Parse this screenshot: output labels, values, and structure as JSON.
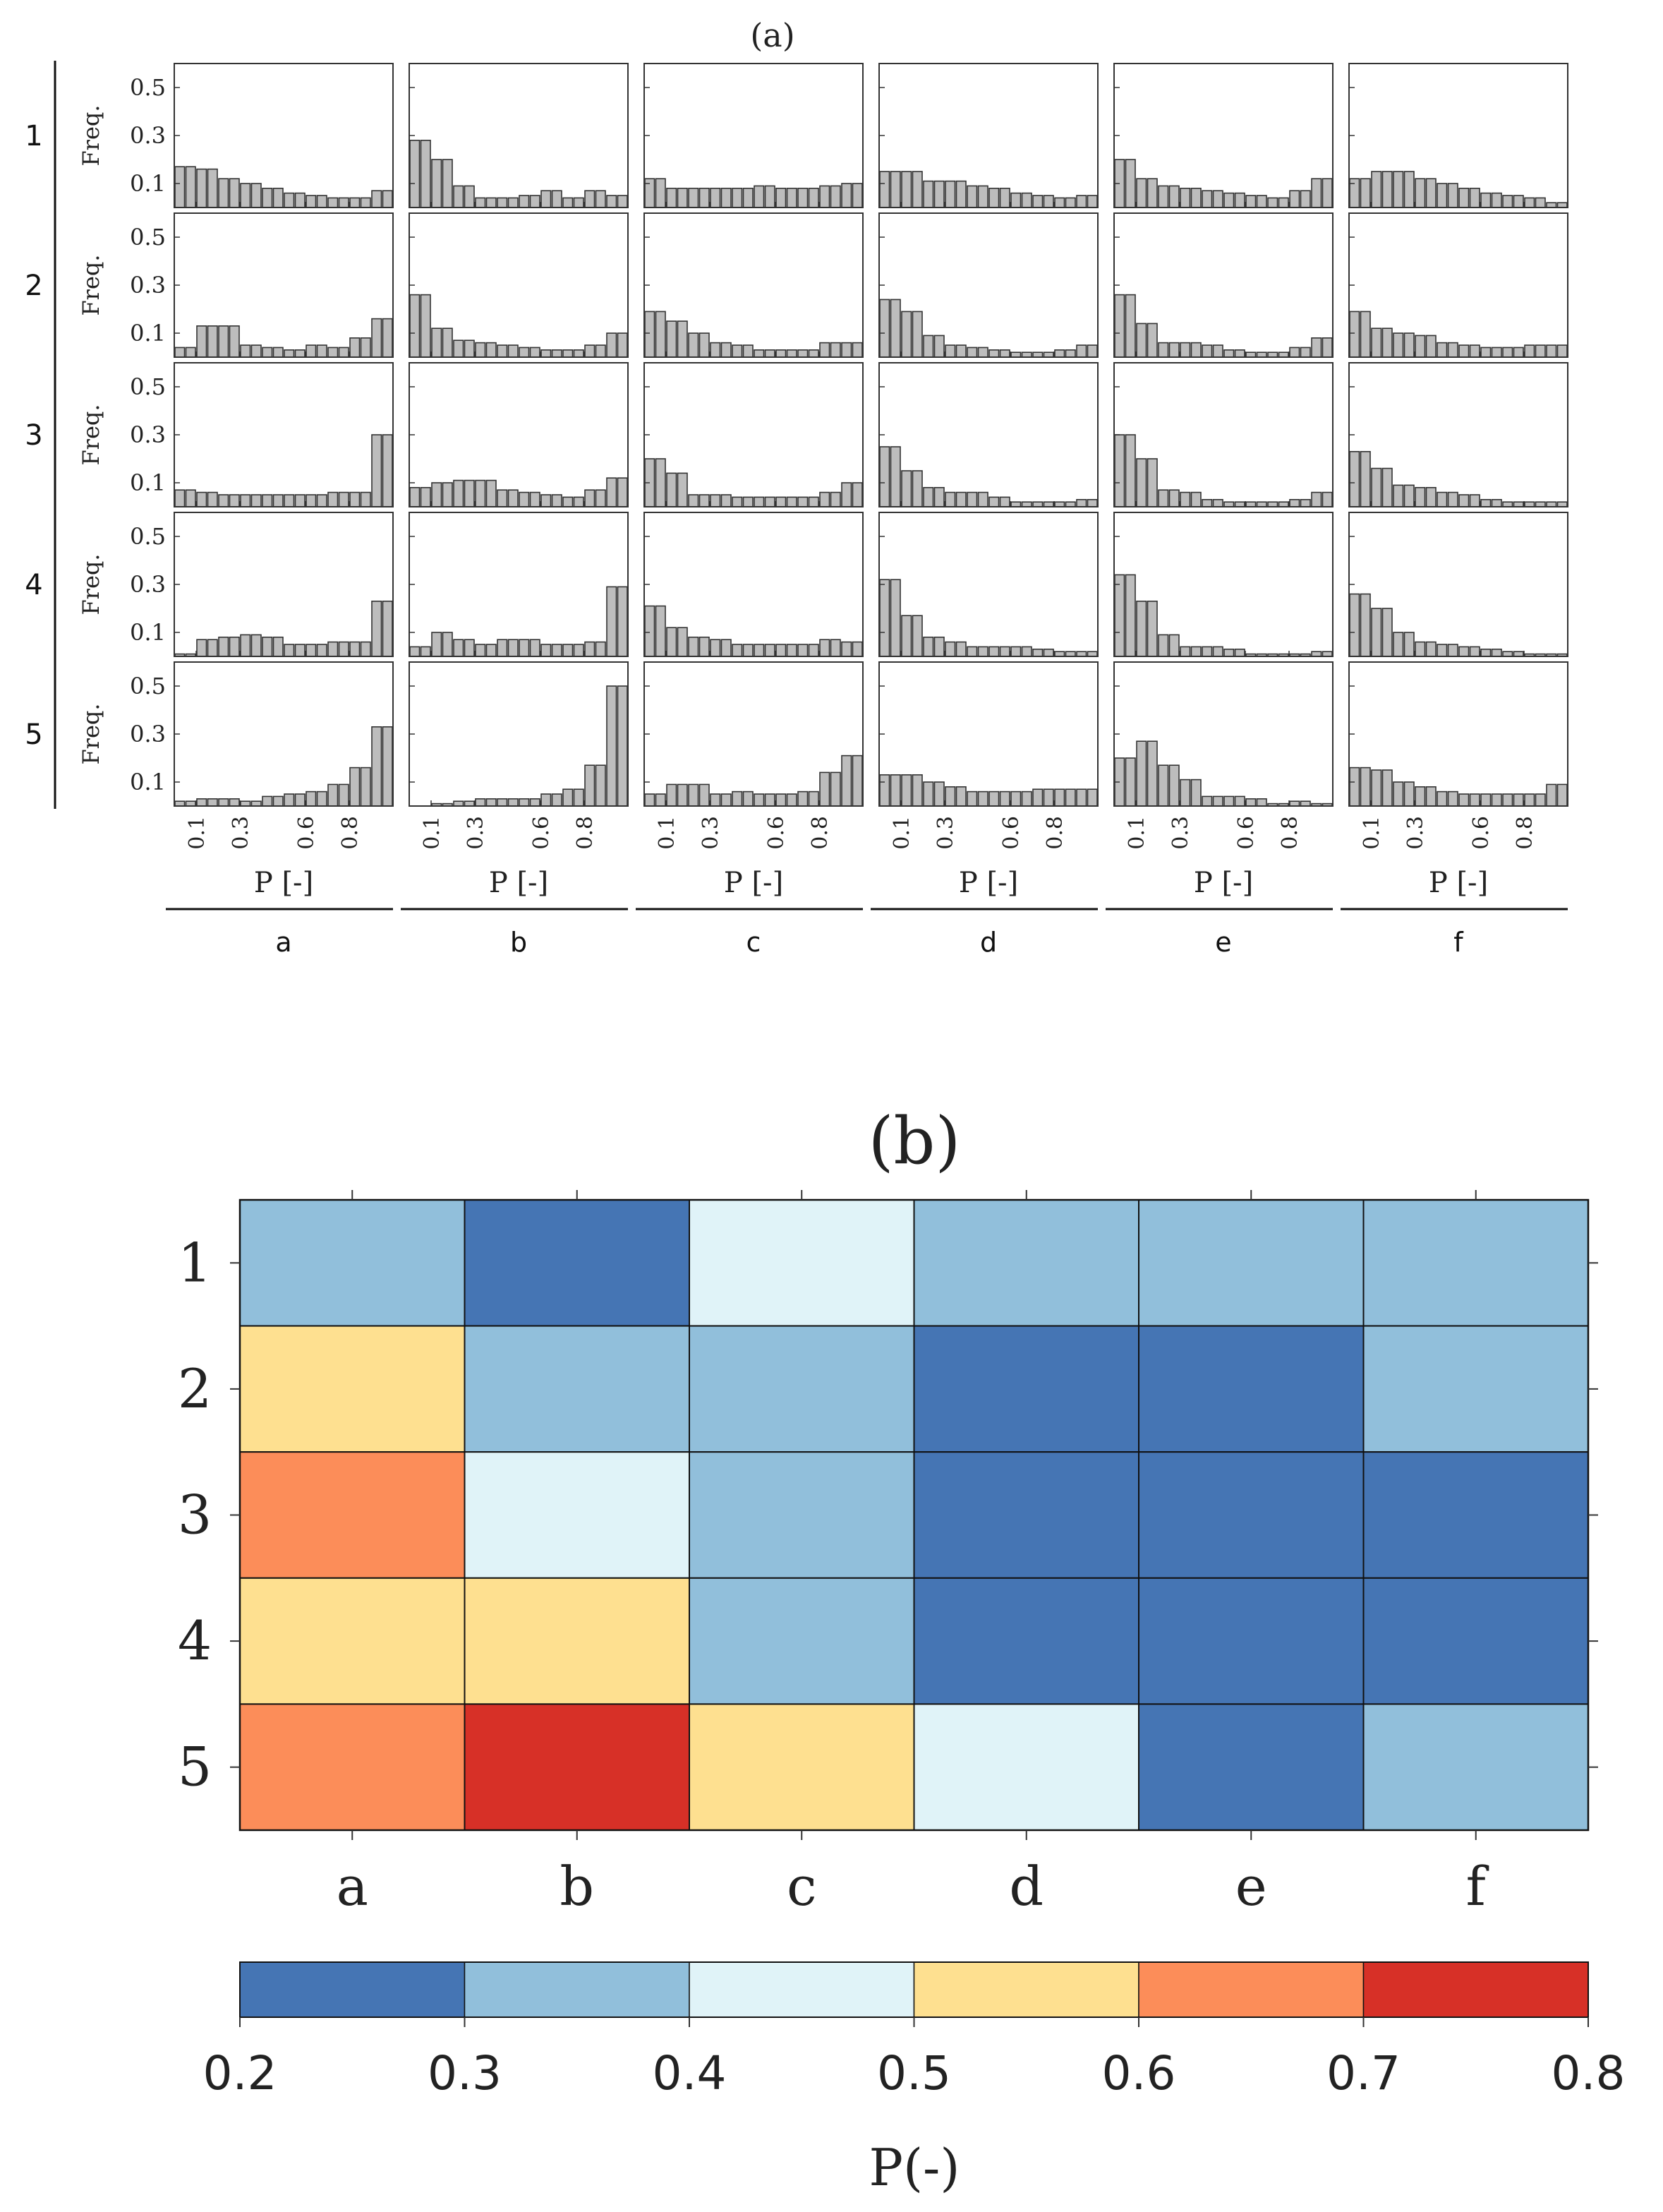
{
  "panel_a": {
    "title": "(a)",
    "y_axis_label": "Freq.",
    "x_axis_label": "P [-]",
    "y_tick_labels": [
      "0.5",
      "0.3",
      "0.1"
    ],
    "x_tick_labels": [
      "0.1",
      "0.3",
      "0.6",
      "0.8"
    ],
    "row_labels": [
      "1",
      "2",
      "3",
      "4",
      "5"
    ],
    "col_labels": [
      "a",
      "b",
      "c",
      "d",
      "e",
      "f"
    ]
  },
  "panel_b": {
    "title": "(b)",
    "row_labels": [
      "1",
      "2",
      "3",
      "4",
      "5"
    ],
    "col_labels": [
      "a",
      "b",
      "c",
      "d",
      "e",
      "f"
    ]
  },
  "colorbar": {
    "label": "P(-)",
    "tick_labels": [
      "0.2",
      "0.3",
      "0.4",
      "0.5",
      "0.6",
      "0.7",
      "0.8"
    ],
    "bins": [
      {
        "from": 0.2,
        "to": 0.3,
        "color": "#4575b4"
      },
      {
        "from": 0.3,
        "to": 0.4,
        "color": "#91bfdb"
      },
      {
        "from": 0.4,
        "to": 0.5,
        "color": "#e0f3f8"
      },
      {
        "from": 0.5,
        "to": 0.6,
        "color": "#fee090"
      },
      {
        "from": 0.6,
        "to": 0.7,
        "color": "#fc8d59"
      },
      {
        "from": 0.7,
        "to": 0.8,
        "color": "#d73027"
      }
    ]
  },
  "chart_data": [
    {
      "type": "bar",
      "title": "(a)",
      "xlabel": "P [-]",
      "ylabel": "Freq.",
      "ylim": [
        0,
        0.6
      ],
      "xlim": [
        0,
        1
      ],
      "bin_centers": [
        0.025,
        0.075,
        0.125,
        0.175,
        0.225,
        0.275,
        0.325,
        0.375,
        0.425,
        0.475,
        0.525,
        0.575,
        0.625,
        0.675,
        0.725,
        0.775,
        0.825,
        0.875,
        0.925,
        0.975
      ],
      "bar_color": "#bdbdbd",
      "note": "Grid of histograms: rows 1-5, columns a-f. Each has 20 bins over P in [0,1].",
      "histograms": {
        "1": {
          "a": [
            0.17,
            0.17,
            0.16,
            0.16,
            0.12,
            0.12,
            0.1,
            0.1,
            0.08,
            0.08,
            0.06,
            0.06,
            0.05,
            0.05,
            0.04,
            0.04,
            0.04,
            0.04,
            0.07,
            0.07
          ],
          "b": [
            0.28,
            0.28,
            0.2,
            0.2,
            0.09,
            0.09,
            0.04,
            0.04,
            0.04,
            0.04,
            0.05,
            0.05,
            0.07,
            0.07,
            0.04,
            0.04,
            0.07,
            0.07,
            0.05,
            0.05
          ],
          "c": [
            0.12,
            0.12,
            0.08,
            0.08,
            0.08,
            0.08,
            0.08,
            0.08,
            0.08,
            0.08,
            0.09,
            0.09,
            0.08,
            0.08,
            0.08,
            0.08,
            0.09,
            0.09,
            0.1,
            0.1
          ],
          "d": [
            0.15,
            0.15,
            0.15,
            0.15,
            0.11,
            0.11,
            0.11,
            0.11,
            0.09,
            0.09,
            0.08,
            0.08,
            0.06,
            0.06,
            0.05,
            0.05,
            0.04,
            0.04,
            0.05,
            0.05
          ],
          "e": [
            0.2,
            0.2,
            0.12,
            0.12,
            0.09,
            0.09,
            0.08,
            0.08,
            0.07,
            0.07,
            0.06,
            0.06,
            0.05,
            0.05,
            0.04,
            0.04,
            0.07,
            0.07,
            0.12,
            0.12
          ],
          "f": [
            0.12,
            0.12,
            0.15,
            0.15,
            0.15,
            0.15,
            0.12,
            0.12,
            0.1,
            0.1,
            0.08,
            0.08,
            0.06,
            0.06,
            0.05,
            0.05,
            0.04,
            0.04,
            0.02,
            0.02
          ]
        },
        "2": {
          "a": [
            0.04,
            0.04,
            0.13,
            0.13,
            0.13,
            0.13,
            0.05,
            0.05,
            0.04,
            0.04,
            0.03,
            0.03,
            0.05,
            0.05,
            0.04,
            0.04,
            0.08,
            0.08,
            0.16,
            0.16
          ],
          "b": [
            0.26,
            0.26,
            0.12,
            0.12,
            0.07,
            0.07,
            0.06,
            0.06,
            0.05,
            0.05,
            0.04,
            0.04,
            0.03,
            0.03,
            0.03,
            0.03,
            0.05,
            0.05,
            0.1,
            0.1
          ],
          "c": [
            0.19,
            0.19,
            0.15,
            0.15,
            0.1,
            0.1,
            0.06,
            0.06,
            0.05,
            0.05,
            0.03,
            0.03,
            0.03,
            0.03,
            0.03,
            0.03,
            0.06,
            0.06,
            0.06,
            0.06
          ],
          "d": [
            0.24,
            0.24,
            0.19,
            0.19,
            0.09,
            0.09,
            0.05,
            0.05,
            0.04,
            0.04,
            0.03,
            0.03,
            0.02,
            0.02,
            0.02,
            0.02,
            0.03,
            0.03,
            0.05,
            0.05
          ],
          "e": [
            0.26,
            0.26,
            0.14,
            0.14,
            0.06,
            0.06,
            0.06,
            0.06,
            0.05,
            0.05,
            0.03,
            0.03,
            0.02,
            0.02,
            0.02,
            0.02,
            0.04,
            0.04,
            0.08,
            0.08
          ],
          "f": [
            0.19,
            0.19,
            0.12,
            0.12,
            0.1,
            0.1,
            0.09,
            0.09,
            0.06,
            0.06,
            0.05,
            0.05,
            0.04,
            0.04,
            0.04,
            0.04,
            0.05,
            0.05,
            0.05,
            0.05
          ]
        },
        "3": {
          "a": [
            0.07,
            0.07,
            0.06,
            0.06,
            0.05,
            0.05,
            0.05,
            0.05,
            0.05,
            0.05,
            0.05,
            0.05,
            0.05,
            0.05,
            0.06,
            0.06,
            0.06,
            0.06,
            0.3,
            0.3
          ],
          "b": [
            0.08,
            0.08,
            0.1,
            0.1,
            0.11,
            0.11,
            0.11,
            0.11,
            0.07,
            0.07,
            0.06,
            0.06,
            0.05,
            0.05,
            0.04,
            0.04,
            0.07,
            0.07,
            0.12,
            0.12
          ],
          "c": [
            0.2,
            0.2,
            0.14,
            0.14,
            0.05,
            0.05,
            0.05,
            0.05,
            0.04,
            0.04,
            0.04,
            0.04,
            0.04,
            0.04,
            0.04,
            0.04,
            0.06,
            0.06,
            0.1,
            0.1
          ],
          "d": [
            0.25,
            0.25,
            0.15,
            0.15,
            0.08,
            0.08,
            0.06,
            0.06,
            0.06,
            0.06,
            0.04,
            0.04,
            0.02,
            0.02,
            0.02,
            0.02,
            0.02,
            0.02,
            0.03,
            0.03
          ],
          "e": [
            0.3,
            0.3,
            0.2,
            0.2,
            0.07,
            0.07,
            0.06,
            0.06,
            0.03,
            0.03,
            0.02,
            0.02,
            0.02,
            0.02,
            0.02,
            0.02,
            0.03,
            0.03,
            0.06,
            0.06
          ],
          "f": [
            0.23,
            0.23,
            0.16,
            0.16,
            0.09,
            0.09,
            0.08,
            0.08,
            0.06,
            0.06,
            0.05,
            0.05,
            0.03,
            0.03,
            0.02,
            0.02,
            0.02,
            0.02,
            0.02,
            0.02
          ]
        },
        "4": {
          "a": [
            0.01,
            0.01,
            0.07,
            0.07,
            0.08,
            0.08,
            0.09,
            0.09,
            0.08,
            0.08,
            0.05,
            0.05,
            0.05,
            0.05,
            0.06,
            0.06,
            0.06,
            0.06,
            0.23,
            0.23
          ],
          "b": [
            0.04,
            0.04,
            0.1,
            0.1,
            0.07,
            0.07,
            0.05,
            0.05,
            0.07,
            0.07,
            0.07,
            0.07,
            0.05,
            0.05,
            0.05,
            0.05,
            0.06,
            0.06,
            0.29,
            0.29
          ],
          "c": [
            0.21,
            0.21,
            0.12,
            0.12,
            0.08,
            0.08,
            0.07,
            0.07,
            0.05,
            0.05,
            0.05,
            0.05,
            0.05,
            0.05,
            0.05,
            0.05,
            0.07,
            0.07,
            0.06,
            0.06
          ],
          "d": [
            0.32,
            0.32,
            0.17,
            0.17,
            0.08,
            0.08,
            0.06,
            0.06,
            0.04,
            0.04,
            0.04,
            0.04,
            0.04,
            0.04,
            0.03,
            0.03,
            0.02,
            0.02,
            0.02,
            0.02
          ],
          "e": [
            0.34,
            0.34,
            0.23,
            0.23,
            0.09,
            0.09,
            0.04,
            0.04,
            0.04,
            0.04,
            0.03,
            0.03,
            0.01,
            0.01,
            0.01,
            0.01,
            0.01,
            0.01,
            0.02,
            0.02
          ],
          "f": [
            0.26,
            0.26,
            0.2,
            0.2,
            0.1,
            0.1,
            0.06,
            0.06,
            0.05,
            0.05,
            0.04,
            0.04,
            0.03,
            0.03,
            0.02,
            0.02,
            0.01,
            0.01,
            0.01,
            0.01
          ]
        },
        "5": {
          "a": [
            0.02,
            0.02,
            0.03,
            0.03,
            0.03,
            0.03,
            0.02,
            0.02,
            0.04,
            0.04,
            0.05,
            0.05,
            0.06,
            0.06,
            0.09,
            0.09,
            0.16,
            0.16,
            0.33,
            0.33
          ],
          "b": [
            0.0,
            0.0,
            0.01,
            0.01,
            0.02,
            0.02,
            0.03,
            0.03,
            0.03,
            0.03,
            0.03,
            0.03,
            0.05,
            0.05,
            0.07,
            0.07,
            0.17,
            0.17,
            0.5,
            0.5
          ],
          "c": [
            0.05,
            0.05,
            0.09,
            0.09,
            0.09,
            0.09,
            0.05,
            0.05,
            0.06,
            0.06,
            0.05,
            0.05,
            0.05,
            0.05,
            0.06,
            0.06,
            0.14,
            0.14,
            0.21,
            0.21
          ],
          "d": [
            0.13,
            0.13,
            0.13,
            0.13,
            0.1,
            0.1,
            0.08,
            0.08,
            0.06,
            0.06,
            0.06,
            0.06,
            0.06,
            0.06,
            0.07,
            0.07,
            0.07,
            0.07,
            0.07,
            0.07
          ],
          "e": [
            0.2,
            0.2,
            0.27,
            0.27,
            0.17,
            0.17,
            0.11,
            0.11,
            0.04,
            0.04,
            0.04,
            0.04,
            0.03,
            0.03,
            0.01,
            0.01,
            0.02,
            0.02,
            0.01,
            0.01
          ],
          "f": [
            0.16,
            0.16,
            0.15,
            0.15,
            0.1,
            0.1,
            0.08,
            0.08,
            0.06,
            0.06,
            0.05,
            0.05,
            0.05,
            0.05,
            0.05,
            0.05,
            0.05,
            0.05,
            0.09,
            0.09
          ]
        }
      }
    },
    {
      "type": "heatmap",
      "title": "(b)",
      "rows": [
        "1",
        "2",
        "3",
        "4",
        "5"
      ],
      "cols": [
        "a",
        "b",
        "c",
        "d",
        "e",
        "f"
      ],
      "colorbar_label": "P(-)",
      "vmin": 0.2,
      "vmax": 0.8,
      "values": [
        [
          0.35,
          0.25,
          0.45,
          0.35,
          0.35,
          0.35
        ],
        [
          0.55,
          0.35,
          0.35,
          0.25,
          0.25,
          0.35
        ],
        [
          0.65,
          0.45,
          0.35,
          0.25,
          0.25,
          0.25
        ],
        [
          0.55,
          0.55,
          0.35,
          0.25,
          0.25,
          0.25
        ],
        [
          0.65,
          0.75,
          0.55,
          0.45,
          0.25,
          0.35
        ]
      ]
    }
  ]
}
